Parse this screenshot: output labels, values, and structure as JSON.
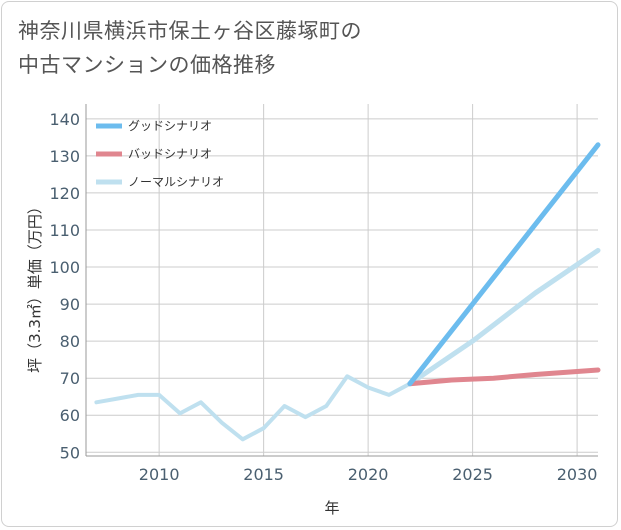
{
  "title_lines": [
    "神奈川県横浜市保土ヶ谷区藤塚町の",
    "中古マンションの価格推移"
  ],
  "colors": {
    "good": "#6cbcee",
    "bad": "#e0868f",
    "normal": "#bfe0ef",
    "grid": "#cccccc",
    "axis": "#999999"
  },
  "chart_data": {
    "type": "line",
    "title": "神奈川県横浜市保土ヶ谷区藤塚町の中古マンションの価格推移",
    "xlabel": "年",
    "ylabel": "坪（3.3㎡）単価（万円）",
    "xlim": [
      2006.5,
      2031
    ],
    "ylim": [
      49,
      144
    ],
    "xticks": [
      2010,
      2015,
      2020,
      2025,
      2030
    ],
    "yticks": [
      50,
      60,
      70,
      80,
      90,
      100,
      110,
      120,
      130,
      140
    ],
    "legend_position": "top-left",
    "history": {
      "x": [
        2007,
        2008,
        2009,
        2010,
        2011,
        2012,
        2013,
        2014,
        2015,
        2016,
        2017,
        2018,
        2019,
        2020,
        2021,
        2022
      ],
      "y": [
        63.5,
        64.5,
        65.5,
        65.5,
        60.5,
        63.5,
        58,
        53.5,
        56.5,
        62.5,
        59.5,
        62.5,
        70.5,
        67.5,
        65.5,
        68.5
      ]
    },
    "series": [
      {
        "name": "グッドシナリオ",
        "key": "good",
        "x": [
          2022,
          2031
        ],
        "y": [
          68.5,
          133
        ]
      },
      {
        "name": "バッドシナリオ",
        "key": "bad",
        "x": [
          2022,
          2024,
          2026,
          2028,
          2031
        ],
        "y": [
          68.5,
          69.5,
          70,
          71,
          72.2
        ]
      },
      {
        "name": "ノーマルシナリオ",
        "key": "normal",
        "x": [
          2022,
          2025,
          2028,
          2031
        ],
        "y": [
          68.5,
          80,
          93,
          104.5
        ]
      }
    ]
  }
}
